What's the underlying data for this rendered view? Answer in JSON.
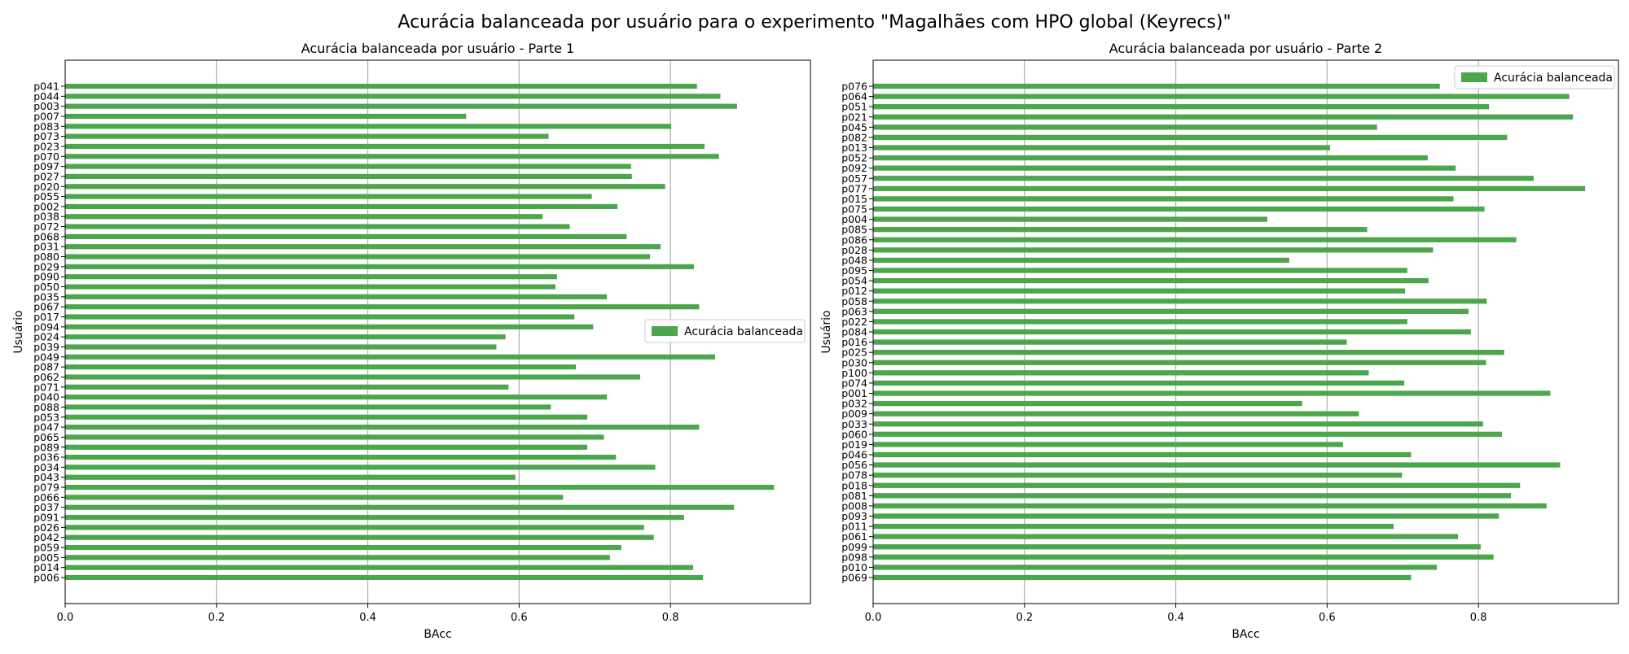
{
  "suptitle": "Acurácia balanceada por usuário para o experimento \"Magalhães com HPO global (Keyrecs)\"",
  "colors": {
    "bar": "#4ca64c",
    "grid": "#b0b0b0"
  },
  "chart_data": [
    {
      "type": "bar",
      "orientation": "horizontal",
      "title": "Acurácia balanceada por usuário - Parte 1",
      "xlabel": "BAcc",
      "ylabel": "Usuário",
      "xlim": [
        0.0,
        0.985
      ],
      "xticks": [
        0.0,
        0.2,
        0.4,
        0.6,
        0.8
      ],
      "xtick_labels": [
        "0.0",
        "0.2",
        "0.4",
        "0.6",
        "0.8"
      ],
      "grid": "x",
      "legend": "center-right",
      "series": [
        {
          "name": "Acurácia balanceada"
        }
      ],
      "categories": [
        "p006",
        "p014",
        "p005",
        "p059",
        "p042",
        "p026",
        "p091",
        "p037",
        "p066",
        "p079",
        "p043",
        "p034",
        "p036",
        "p089",
        "p065",
        "p047",
        "p053",
        "p088",
        "p040",
        "p071",
        "p062",
        "p087",
        "p049",
        "p039",
        "p024",
        "p094",
        "p017",
        "p067",
        "p035",
        "p050",
        "p090",
        "p029",
        "p080",
        "p031",
        "p068",
        "p072",
        "p038",
        "p002",
        "p055",
        "p020",
        "p027",
        "p097",
        "p070",
        "p023",
        "p073",
        "p083",
        "p007",
        "p003",
        "p044",
        "p041"
      ],
      "values": [
        0.843,
        0.83,
        0.72,
        0.735,
        0.778,
        0.765,
        0.818,
        0.884,
        0.658,
        0.937,
        0.595,
        0.78,
        0.728,
        0.69,
        0.712,
        0.838,
        0.69,
        0.642,
        0.716,
        0.586,
        0.76,
        0.675,
        0.859,
        0.57,
        0.582,
        0.698,
        0.673,
        0.838,
        0.716,
        0.648,
        0.65,
        0.831,
        0.773,
        0.787,
        0.742,
        0.667,
        0.631,
        0.73,
        0.696,
        0.793,
        0.749,
        0.748,
        0.864,
        0.845,
        0.639,
        0.801,
        0.53,
        0.888,
        0.866,
        0.835
      ]
    },
    {
      "type": "bar",
      "orientation": "horizontal",
      "title": "Acurácia balanceada por usuário - Parte 2",
      "xlabel": "BAcc",
      "ylabel": "Usuário",
      "xlim": [
        0.0,
        0.985
      ],
      "xticks": [
        0.0,
        0.2,
        0.4,
        0.6,
        0.8
      ],
      "xtick_labels": [
        "0.0",
        "0.2",
        "0.4",
        "0.6",
        "0.8"
      ],
      "grid": "x",
      "legend": "top-right",
      "series": [
        {
          "name": "Acurácia balanceada"
        }
      ],
      "categories": [
        "p069",
        "p010",
        "p098",
        "p099",
        "p061",
        "p011",
        "p093",
        "p008",
        "p081",
        "p018",
        "p078",
        "p056",
        "p046",
        "p019",
        "p060",
        "p033",
        "p009",
        "p032",
        "p001",
        "p074",
        "p100",
        "p030",
        "p025",
        "p016",
        "p084",
        "p022",
        "p063",
        "p058",
        "p012",
        "p054",
        "p095",
        "p048",
        "p028",
        "p086",
        "p085",
        "p004",
        "p075",
        "p015",
        "p077",
        "p057",
        "p092",
        "p052",
        "p013",
        "p082",
        "p045",
        "p021",
        "p051",
        "p064",
        "p076"
      ],
      "values": [
        0.711,
        0.745,
        0.82,
        0.803,
        0.773,
        0.688,
        0.827,
        0.89,
        0.843,
        0.855,
        0.699,
        0.908,
        0.711,
        0.621,
        0.831,
        0.806,
        0.642,
        0.567,
        0.895,
        0.702,
        0.655,
        0.81,
        0.834,
        0.626,
        0.79,
        0.706,
        0.787,
        0.811,
        0.703,
        0.734,
        0.706,
        0.55,
        0.74,
        0.85,
        0.653,
        0.521,
        0.808,
        0.767,
        0.941,
        0.873,
        0.77,
        0.733,
        0.604,
        0.838,
        0.666,
        0.925,
        0.814,
        0.92,
        0.749
      ]
    }
  ]
}
